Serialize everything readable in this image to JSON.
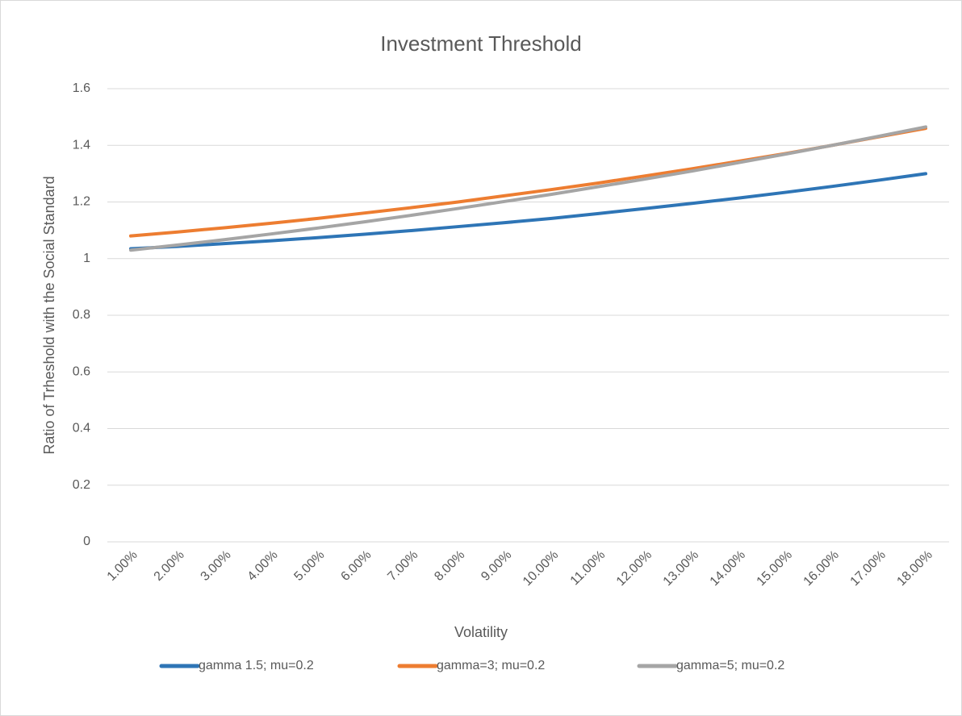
{
  "chart_data": {
    "type": "line",
    "title": "Investment Threshold",
    "x_label": "Volatility",
    "y_label": "Ratio of Trheshold with the Social Standard",
    "categories": [
      "1.00%",
      "2.00%",
      "3.00%",
      "4.00%",
      "5.00%",
      "6.00%",
      "7.00%",
      "8.00%",
      "9.00%",
      "10.00%",
      "11.00%",
      "12.00%",
      "13.00%",
      "14.00%",
      "15.00%",
      "16.00%",
      "17.00%",
      "18.00%"
    ],
    "series": [
      {
        "name": "gamma 1.5; mu=0.2",
        "color": "#2e75b6",
        "values": [
          1.035,
          1.043,
          1.053,
          1.063,
          1.074,
          1.086,
          1.099,
          1.113,
          1.127,
          1.142,
          1.159,
          1.177,
          1.195,
          1.214,
          1.234,
          1.255,
          1.277,
          1.3
        ]
      },
      {
        "name": "gamma=3; mu=0.2",
        "color": "#ed7d31",
        "values": [
          1.08,
          1.094,
          1.109,
          1.125,
          1.142,
          1.161,
          1.18,
          1.2,
          1.222,
          1.244,
          1.267,
          1.292,
          1.317,
          1.344,
          1.371,
          1.4,
          1.43,
          1.46
        ]
      },
      {
        "name": "gamma=5; mu=0.2",
        "color": "#a5a5a5",
        "values": [
          1.03,
          1.048,
          1.067,
          1.087,
          1.108,
          1.13,
          1.153,
          1.177,
          1.202,
          1.227,
          1.254,
          1.281,
          1.309,
          1.339,
          1.369,
          1.4,
          1.432,
          1.465
        ]
      }
    ],
    "ylim": [
      0,
      1.6
    ],
    "yticks": [
      0,
      0.2,
      0.4,
      0.6,
      0.8,
      1,
      1.2,
      1.4,
      1.6
    ],
    "grid": true,
    "legend": "bottom"
  }
}
